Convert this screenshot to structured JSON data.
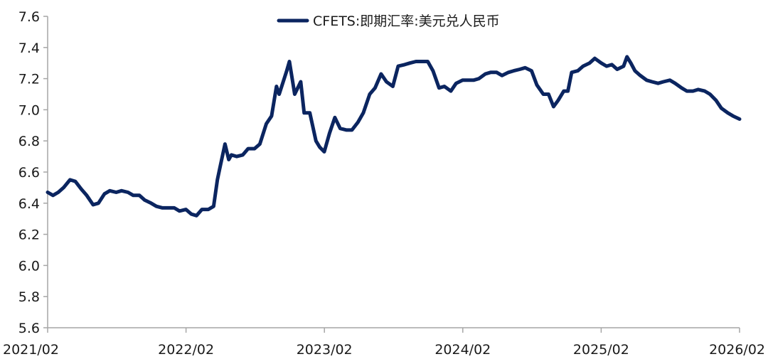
{
  "chart_data": {
    "type": "line",
    "title": "",
    "xlabel": "",
    "ylabel": "",
    "ylim": [
      5.6,
      7.6
    ],
    "yticks": [
      "5.6",
      "5.8",
      "6.0",
      "6.2",
      "6.4",
      "6.6",
      "6.8",
      "7.0",
      "7.2",
      "7.4",
      "7.6"
    ],
    "xticks": [
      "2021/02",
      "2022/02",
      "2023/02",
      "2024/02",
      "2025/02",
      "2026/02"
    ],
    "xlim": [
      "2021-02-01",
      "2026-02-01"
    ],
    "grid": false,
    "legend_position": "top-center",
    "series": [
      {
        "name": "CFETS:即期汇率:美元兑人民币",
        "color": "#0b2560",
        "points": [
          [
            "2021-02-01",
            6.47
          ],
          [
            "2021-02-15",
            6.45
          ],
          [
            "2021-03-01",
            6.47
          ],
          [
            "2021-03-15",
            6.5
          ],
          [
            "2021-04-01",
            6.55
          ],
          [
            "2021-04-15",
            6.54
          ],
          [
            "2021-05-01",
            6.49
          ],
          [
            "2021-05-15",
            6.45
          ],
          [
            "2021-06-01",
            6.39
          ],
          [
            "2021-06-15",
            6.4
          ],
          [
            "2021-07-01",
            6.46
          ],
          [
            "2021-07-15",
            6.48
          ],
          [
            "2021-08-01",
            6.47
          ],
          [
            "2021-08-15",
            6.48
          ],
          [
            "2021-09-01",
            6.47
          ],
          [
            "2021-09-15",
            6.45
          ],
          [
            "2021-10-01",
            6.45
          ],
          [
            "2021-10-15",
            6.42
          ],
          [
            "2021-11-01",
            6.4
          ],
          [
            "2021-11-15",
            6.38
          ],
          [
            "2021-12-01",
            6.37
          ],
          [
            "2021-12-15",
            6.37
          ],
          [
            "2022-01-01",
            6.37
          ],
          [
            "2022-01-15",
            6.35
          ],
          [
            "2022-02-01",
            6.36
          ],
          [
            "2022-02-15",
            6.33
          ],
          [
            "2022-03-01",
            6.32
          ],
          [
            "2022-03-15",
            6.36
          ],
          [
            "2022-04-01",
            6.36
          ],
          [
            "2022-04-15",
            6.38
          ],
          [
            "2022-04-25",
            6.55
          ],
          [
            "2022-05-01",
            6.62
          ],
          [
            "2022-05-15",
            6.78
          ],
          [
            "2022-05-25",
            6.68
          ],
          [
            "2022-06-01",
            6.71
          ],
          [
            "2022-06-15",
            6.7
          ],
          [
            "2022-07-01",
            6.71
          ],
          [
            "2022-07-15",
            6.75
          ],
          [
            "2022-08-01",
            6.75
          ],
          [
            "2022-08-15",
            6.78
          ],
          [
            "2022-09-01",
            6.91
          ],
          [
            "2022-09-15",
            6.96
          ],
          [
            "2022-09-28",
            7.15
          ],
          [
            "2022-10-05",
            7.1
          ],
          [
            "2022-10-25",
            7.25
          ],
          [
            "2022-11-01",
            7.31
          ],
          [
            "2022-11-05",
            7.25
          ],
          [
            "2022-11-15",
            7.1
          ],
          [
            "2022-12-01",
            7.18
          ],
          [
            "2022-12-10",
            6.98
          ],
          [
            "2022-12-25",
            6.98
          ],
          [
            "2023-01-10",
            6.8
          ],
          [
            "2023-01-20",
            6.76
          ],
          [
            "2023-02-01",
            6.73
          ],
          [
            "2023-02-15",
            6.85
          ],
          [
            "2023-03-01",
            6.95
          ],
          [
            "2023-03-15",
            6.88
          ],
          [
            "2023-04-01",
            6.87
          ],
          [
            "2023-04-15",
            6.87
          ],
          [
            "2023-05-01",
            6.92
          ],
          [
            "2023-05-15",
            6.98
          ],
          [
            "2023-06-01",
            7.1
          ],
          [
            "2023-06-15",
            7.14
          ],
          [
            "2023-07-01",
            7.23
          ],
          [
            "2023-07-15",
            7.18
          ],
          [
            "2023-08-01",
            7.15
          ],
          [
            "2023-08-15",
            7.28
          ],
          [
            "2023-09-01",
            7.29
          ],
          [
            "2023-09-15",
            7.3
          ],
          [
            "2023-10-01",
            7.31
          ],
          [
            "2023-10-15",
            7.31
          ],
          [
            "2023-11-01",
            7.31
          ],
          [
            "2023-11-15",
            7.25
          ],
          [
            "2023-12-01",
            7.14
          ],
          [
            "2023-12-15",
            7.15
          ],
          [
            "2024-01-01",
            7.12
          ],
          [
            "2024-01-15",
            7.17
          ],
          [
            "2024-02-01",
            7.19
          ],
          [
            "2024-02-15",
            7.19
          ],
          [
            "2024-03-01",
            7.19
          ],
          [
            "2024-03-15",
            7.2
          ],
          [
            "2024-04-01",
            7.23
          ],
          [
            "2024-04-15",
            7.24
          ],
          [
            "2024-05-01",
            7.24
          ],
          [
            "2024-05-15",
            7.22
          ],
          [
            "2024-06-01",
            7.24
          ],
          [
            "2024-06-15",
            7.25
          ],
          [
            "2024-07-01",
            7.26
          ],
          [
            "2024-07-15",
            7.27
          ],
          [
            "2024-08-01",
            7.25
          ],
          [
            "2024-08-15",
            7.16
          ],
          [
            "2024-09-01",
            7.1
          ],
          [
            "2024-09-15",
            7.1
          ],
          [
            "2024-09-28",
            7.02
          ],
          [
            "2024-10-10",
            7.06
          ],
          [
            "2024-10-25",
            7.12
          ],
          [
            "2024-11-05",
            7.12
          ],
          [
            "2024-11-15",
            7.24
          ],
          [
            "2024-12-01",
            7.25
          ],
          [
            "2024-12-15",
            7.28
          ],
          [
            "2025-01-01",
            7.3
          ],
          [
            "2025-01-15",
            7.33
          ],
          [
            "2025-02-01",
            7.3
          ],
          [
            "2025-02-15",
            7.28
          ],
          [
            "2025-03-01",
            7.29
          ],
          [
            "2025-03-15",
            7.26
          ],
          [
            "2025-04-01",
            7.28
          ],
          [
            "2025-04-10",
            7.34
          ],
          [
            "2025-04-20",
            7.3
          ],
          [
            "2025-05-01",
            7.25
          ],
          [
            "2025-05-15",
            7.22
          ],
          [
            "2025-06-01",
            7.19
          ],
          [
            "2025-06-15",
            7.18
          ],
          [
            "2025-07-01",
            7.17
          ],
          [
            "2025-07-15",
            7.18
          ],
          [
            "2025-08-01",
            7.19
          ],
          [
            "2025-08-15",
            7.17
          ],
          [
            "2025-09-01",
            7.14
          ],
          [
            "2025-09-15",
            7.12
          ],
          [
            "2025-10-01",
            7.12
          ],
          [
            "2025-10-15",
            7.13
          ],
          [
            "2025-11-01",
            7.12
          ],
          [
            "2025-11-15",
            7.1
          ],
          [
            "2025-12-01",
            7.06
          ],
          [
            "2025-12-15",
            7.01
          ],
          [
            "2026-01-01",
            6.98
          ],
          [
            "2026-01-15",
            6.96
          ],
          [
            "2026-02-01",
            6.94
          ]
        ]
      }
    ]
  }
}
